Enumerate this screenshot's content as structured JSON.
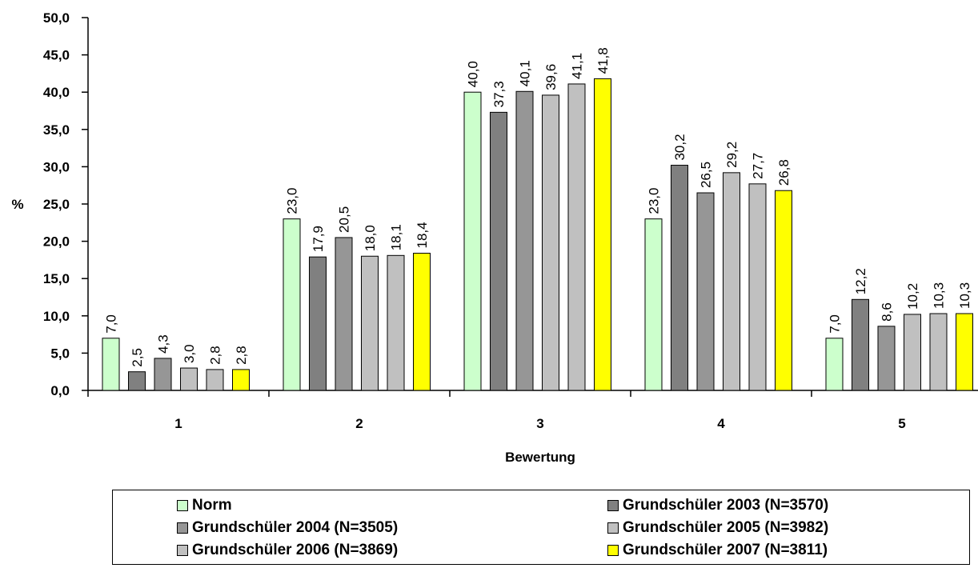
{
  "chart_data": {
    "type": "bar",
    "xlabel": "Bewertung",
    "ylabel": "%",
    "ylim": [
      0,
      50
    ],
    "yticks": [
      "0,0",
      "5,0",
      "10,0",
      "15,0",
      "20,0",
      "25,0",
      "30,0",
      "35,0",
      "40,0",
      "45,0",
      "50,0"
    ],
    "categories": [
      "1",
      "2",
      "3",
      "4",
      "5"
    ],
    "series": [
      {
        "name": "Norm",
        "color": "#ccffcc",
        "values": [
          7.0,
          23.0,
          40.0,
          23.0,
          7.0
        ],
        "labels": [
          "7,0",
          "23,0",
          "40,0",
          "23,0",
          "7,0"
        ]
      },
      {
        "name": "Grundschüler 2003 (N=3570)",
        "color": "#808080",
        "values": [
          2.5,
          17.9,
          37.3,
          30.2,
          12.2
        ],
        "labels": [
          "2,5",
          "17,9",
          "37,3",
          "30,2",
          "12,2"
        ]
      },
      {
        "name": "Grundschüler 2004 (N=3505)",
        "color": "#969696",
        "values": [
          4.3,
          20.5,
          40.1,
          26.5,
          8.6
        ],
        "labels": [
          "4,3",
          "20,5",
          "40,1",
          "26,5",
          "8,6"
        ]
      },
      {
        "name": "Grundschüler 2005 (N=3982)",
        "color": "#c0c0c0",
        "values": [
          3.0,
          18.0,
          39.6,
          29.2,
          10.2
        ],
        "labels": [
          "3,0",
          "18,0",
          "39,6",
          "29,2",
          "10,2"
        ]
      },
      {
        "name": "Grundschüler 2006 (N=3869)",
        "color": "#c0c0c0",
        "values": [
          2.8,
          18.1,
          41.1,
          27.7,
          10.3
        ],
        "labels": [
          "2,8",
          "18,1",
          "41,1",
          "27,7",
          "10,3"
        ]
      },
      {
        "name": "Grundschüler 2007 (N=3811)",
        "color": "#ffff00",
        "values": [
          2.8,
          18.4,
          41.8,
          26.8,
          10.3
        ],
        "labels": [
          "2,8",
          "18,4",
          "41,8",
          "26,8",
          "10,3"
        ]
      }
    ],
    "legend_position": "bottom",
    "grid": false
  }
}
